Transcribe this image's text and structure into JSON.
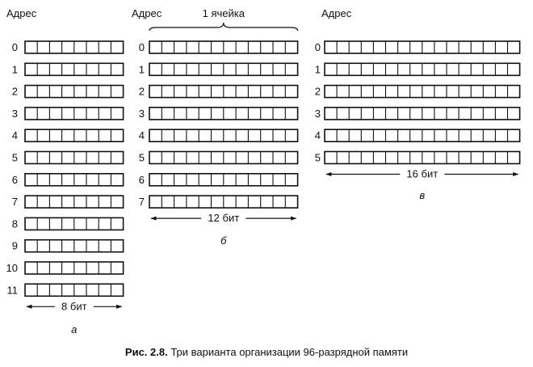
{
  "panels": [
    {
      "id": "a",
      "header": "Адрес",
      "addresses": [
        "0",
        "1",
        "2",
        "3",
        "4",
        "5",
        "6",
        "7",
        "8",
        "9",
        "10",
        "11"
      ],
      "cells_per_row": 8,
      "width_label": "8 бит",
      "panel_label": "а"
    },
    {
      "id": "b",
      "header": "Адрес",
      "brace_label": "1 ячейка",
      "addresses": [
        "0",
        "1",
        "2",
        "3",
        "4",
        "5",
        "6",
        "7"
      ],
      "cells_per_row": 12,
      "width_label": "12 бит",
      "panel_label": "б"
    },
    {
      "id": "c",
      "header": "Адрес",
      "addresses": [
        "0",
        "1",
        "2",
        "3",
        "4",
        "5"
      ],
      "cells_per_row": 16,
      "width_label": "16 бит",
      "panel_label": "в"
    }
  ],
  "caption": {
    "prefix": "Рис. 2.8.",
    "text": "Три варианта организации 96-разрядной памяти"
  }
}
